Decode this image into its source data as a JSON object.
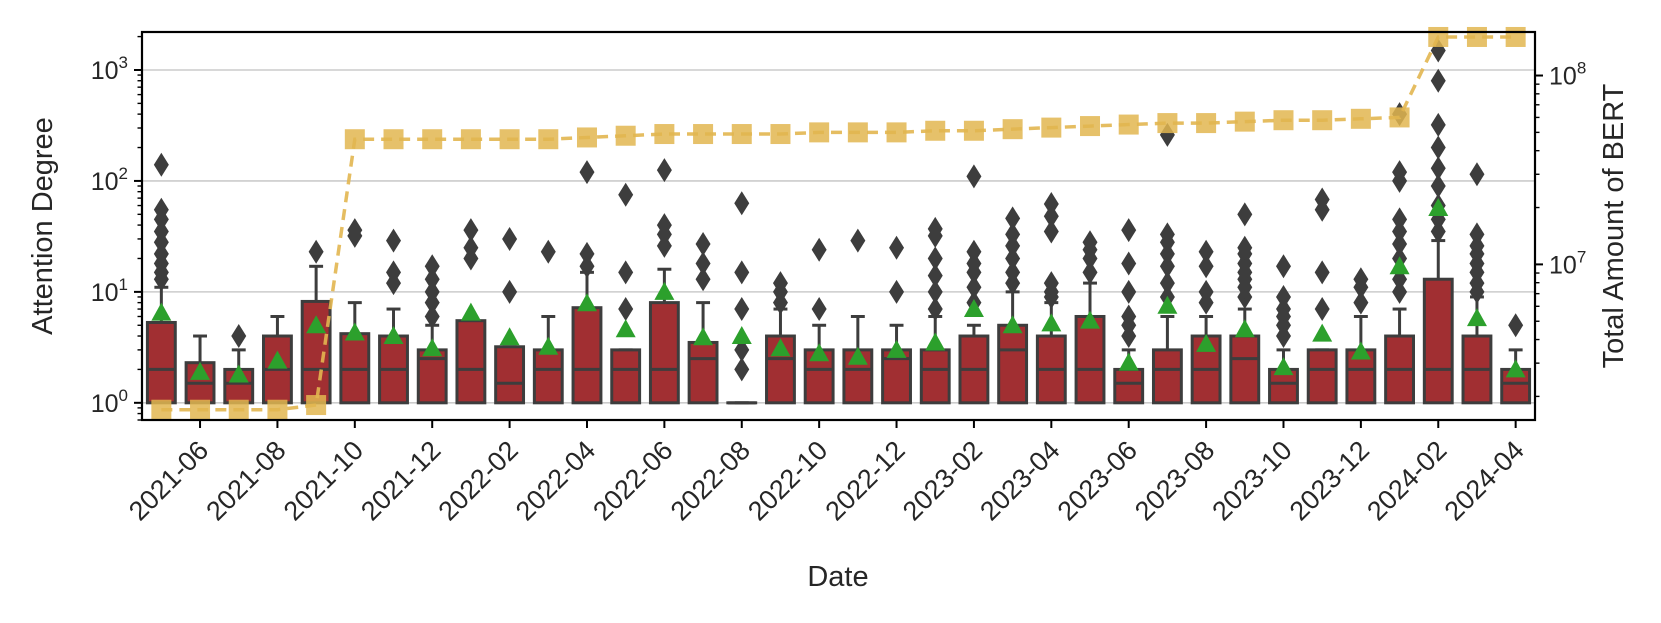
{
  "chart_data": {
    "type": "box",
    "title": "",
    "xlabel": "Date",
    "ylabel_left": "Attention Degree",
    "ylabel_right": "Total Amount of BERT",
    "yscale_left": "log",
    "yscale_right": "log",
    "ylim_left": [
      0.7,
      2200
    ],
    "ylim_right": [
      1500000,
      170000000
    ],
    "months": [
      "2021-05",
      "2021-06",
      "2021-07",
      "2021-08",
      "2021-09",
      "2021-10",
      "2021-11",
      "2021-12",
      "2022-01",
      "2022-02",
      "2022-03",
      "2022-04",
      "2022-05",
      "2022-06",
      "2022-07",
      "2022-08",
      "2022-09",
      "2022-10",
      "2022-11",
      "2022-12",
      "2023-01",
      "2023-02",
      "2023-03",
      "2023-04",
      "2023-05",
      "2023-06",
      "2023-07",
      "2023-08",
      "2023-09",
      "2023-10",
      "2023-11",
      "2023-12",
      "2024-01",
      "2024-02",
      "2024-03",
      "2024-04"
    ],
    "x_tick_labels": [
      "2021-06",
      "2021-08",
      "2021-10",
      "2021-12",
      "2022-02",
      "2022-04",
      "2022-06",
      "2022-08",
      "2022-10",
      "2022-12",
      "2023-02",
      "2023-04",
      "2023-06",
      "2023-08",
      "2023-10",
      "2023-12",
      "2024-02",
      "2024-04"
    ],
    "y_tick_labels_left": [
      {
        "value": 1,
        "label": "10",
        "exp": "0"
      },
      {
        "value": 10,
        "label": "10",
        "exp": "1"
      },
      {
        "value": 100,
        "label": "10",
        "exp": "2"
      },
      {
        "value": 1000,
        "label": "10",
        "exp": "3"
      }
    ],
    "y_tick_labels_right": [
      {
        "value": 10000000,
        "label": "10",
        "exp": "7"
      },
      {
        "value": 100000000,
        "label": "10",
        "exp": "8"
      }
    ],
    "boxes": [
      {
        "q1": 1,
        "median": 2,
        "q3": 5.3,
        "whisker_low": 1,
        "whisker_high": 11,
        "mean": 6.5,
        "outliers": [
          13,
          15,
          18,
          22,
          28,
          35,
          45,
          55,
          140
        ]
      },
      {
        "q1": 1,
        "median": 1.5,
        "q3": 2.3,
        "whisker_low": 1,
        "whisker_high": 4,
        "mean": 1.9,
        "outliers": []
      },
      {
        "q1": 1,
        "median": 1.5,
        "q3": 2,
        "whisker_low": 1,
        "whisker_high": 3,
        "mean": 1.8,
        "outliers": [
          4
        ]
      },
      {
        "q1": 1,
        "median": 2,
        "q3": 4,
        "whisker_low": 1,
        "whisker_high": 6,
        "mean": 2.4,
        "outliers": []
      },
      {
        "q1": 1,
        "median": 2,
        "q3": 8.2,
        "whisker_low": 1,
        "whisker_high": 17,
        "mean": 5,
        "outliers": [
          23
        ]
      },
      {
        "q1": 1,
        "median": 2,
        "q3": 4.2,
        "whisker_low": 1,
        "whisker_high": 8,
        "mean": 4.3,
        "outliers": [
          32,
          36
        ]
      },
      {
        "q1": 1,
        "median": 2,
        "q3": 4,
        "whisker_low": 1,
        "whisker_high": 7,
        "mean": 4,
        "outliers": [
          12,
          15,
          29
        ]
      },
      {
        "q1": 1,
        "median": 2.5,
        "q3": 3,
        "whisker_low": 1,
        "whisker_high": 5,
        "mean": 3.1,
        "outliers": [
          6,
          8,
          10,
          13,
          17
        ]
      },
      {
        "q1": 1,
        "median": 2,
        "q3": 5.5,
        "whisker_low": 1,
        "whisker_high": 5.5,
        "mean": 6.5,
        "outliers": [
          20,
          25,
          36
        ]
      },
      {
        "q1": 1,
        "median": 1.5,
        "q3": 3.2,
        "whisker_low": 1,
        "whisker_high": 3.2,
        "mean": 3.9,
        "outliers": [
          10,
          30
        ]
      },
      {
        "q1": 1,
        "median": 2,
        "q3": 3,
        "whisker_low": 1,
        "whisker_high": 6,
        "mean": 3.2,
        "outliers": [
          23
        ]
      },
      {
        "q1": 1,
        "median": 2,
        "q3": 7.2,
        "whisker_low": 1,
        "whisker_high": 15,
        "mean": 7.9,
        "outliers": [
          17,
          22,
          120
        ]
      },
      {
        "q1": 1,
        "median": 2,
        "q3": 3,
        "whisker_low": 1,
        "whisker_high": 3,
        "mean": 4.6,
        "outliers": [
          7,
          15,
          75
        ]
      },
      {
        "q1": 1,
        "median": 2,
        "q3": 8,
        "whisker_low": 1,
        "whisker_high": 16,
        "mean": 10,
        "outliers": [
          26,
          33,
          40,
          125
        ]
      },
      {
        "q1": 1,
        "median": 2.5,
        "q3": 3.5,
        "whisker_low": 1,
        "whisker_high": 8,
        "mean": 3.9,
        "outliers": [
          13,
          18,
          27
        ]
      },
      {
        "q1": 1,
        "median": 1,
        "q3": 1,
        "whisker_low": 1,
        "whisker_high": 1,
        "mean": 4,
        "outliers": [
          2,
          3,
          7,
          15,
          63
        ]
      },
      {
        "q1": 1,
        "median": 2.5,
        "q3": 4,
        "whisker_low": 1,
        "whisker_high": 7,
        "mean": 3.1,
        "outliers": [
          8,
          10,
          12
        ]
      },
      {
        "q1": 1,
        "median": 2,
        "q3": 3,
        "whisker_low": 1,
        "whisker_high": 5,
        "mean": 2.8,
        "outliers": [
          7,
          24
        ]
      },
      {
        "q1": 1,
        "median": 2,
        "q3": 3,
        "whisker_low": 1,
        "whisker_high": 6,
        "mean": 2.6,
        "outliers": [
          29
        ]
      },
      {
        "q1": 1,
        "median": 2.5,
        "q3": 3,
        "whisker_low": 1,
        "whisker_high": 5,
        "mean": 3,
        "outliers": [
          10,
          25
        ]
      },
      {
        "q1": 1,
        "median": 2,
        "q3": 3,
        "whisker_low": 1,
        "whisker_high": 6,
        "mean": 3.5,
        "outliers": [
          7,
          10,
          14,
          20,
          32,
          37
        ]
      },
      {
        "q1": 1,
        "median": 2,
        "q3": 4,
        "whisker_low": 1,
        "whisker_high": 5,
        "mean": 7,
        "outliers": [
          8,
          11,
          15,
          18,
          23,
          110
        ]
      },
      {
        "q1": 1,
        "median": 3,
        "q3": 5,
        "whisker_low": 1,
        "whisker_high": 10,
        "mean": 5,
        "outliers": [
          12,
          15,
          20,
          26,
          33,
          46
        ]
      },
      {
        "q1": 1,
        "median": 2,
        "q3": 4,
        "whisker_low": 1,
        "whisker_high": 8,
        "mean": 5.2,
        "outliers": [
          9,
          10,
          12,
          35,
          48,
          62
        ]
      },
      {
        "q1": 1,
        "median": 2,
        "q3": 6,
        "whisker_low": 1,
        "whisker_high": 12,
        "mean": 5.5,
        "outliers": [
          15,
          20,
          24,
          28
        ]
      },
      {
        "q1": 1,
        "median": 1.5,
        "q3": 2,
        "whisker_low": 1,
        "whisker_high": 3,
        "mean": 2.3,
        "outliers": [
          4,
          5,
          6,
          10,
          18,
          36
        ]
      },
      {
        "q1": 1,
        "median": 2,
        "q3": 3,
        "whisker_low": 1,
        "whisker_high": 6,
        "mean": 7.5,
        "outliers": [
          9,
          12,
          17,
          22,
          28,
          33,
          260
        ]
      },
      {
        "q1": 1,
        "median": 2,
        "q3": 4,
        "whisker_low": 1,
        "whisker_high": 6,
        "mean": 3.4,
        "outliers": [
          8,
          10,
          17,
          23
        ]
      },
      {
        "q1": 1,
        "median": 2.5,
        "q3": 4,
        "whisker_low": 1,
        "whisker_high": 7,
        "mean": 4.6,
        "outliers": [
          9,
          11,
          13,
          15,
          18,
          22,
          25,
          50
        ]
      },
      {
        "q1": 1,
        "median": 1.5,
        "q3": 2,
        "whisker_low": 1,
        "whisker_high": 3,
        "mean": 2.1,
        "outliers": [
          4,
          5,
          6,
          7,
          9,
          17
        ]
      },
      {
        "q1": 1,
        "median": 2,
        "q3": 3,
        "whisker_low": 1,
        "whisker_high": 3,
        "mean": 4.2,
        "outliers": [
          7,
          15,
          55,
          68
        ]
      },
      {
        "q1": 1,
        "median": 2,
        "q3": 3,
        "whisker_low": 1,
        "whisker_high": 6,
        "mean": 2.9,
        "outliers": [
          8,
          11,
          13
        ]
      },
      {
        "q1": 1,
        "median": 2,
        "q3": 4,
        "whisker_low": 1,
        "whisker_high": 7,
        "mean": 17,
        "outliers": [
          10,
          13,
          20,
          27,
          35,
          45,
          100,
          120,
          400
        ]
      },
      {
        "q1": 1,
        "median": 2,
        "q3": 13,
        "whisker_low": 1,
        "whisker_high": 29,
        "mean": 57,
        "outliers": [
          35,
          45,
          60,
          90,
          130,
          200,
          320,
          800,
          1500
        ]
      },
      {
        "q1": 1,
        "median": 2,
        "q3": 4,
        "whisker_low": 1,
        "whisker_high": 9,
        "mean": 5.8,
        "outliers": [
          10,
          12,
          15,
          18,
          22,
          26,
          33,
          115
        ]
      },
      {
        "q1": 1,
        "median": 1.5,
        "q3": 2,
        "whisker_low": 1,
        "whisker_high": 3,
        "mean": 2,
        "outliers": [
          5
        ]
      }
    ],
    "total_series": {
      "name": "Total Amount of BERT",
      "values": [
        1700000,
        1700000,
        1700000,
        1700000,
        1800000,
        46000000,
        46000000,
        46000000,
        46000000,
        46000000,
        46000000,
        47000000,
        48000000,
        49000000,
        49000000,
        49000000,
        49000000,
        50000000,
        50000000,
        50000000,
        51000000,
        51000000,
        52000000,
        53000000,
        54000000,
        55000000,
        56000000,
        56000000,
        57000000,
        58000000,
        58000000,
        59000000,
        60000000,
        160000000,
        160000000,
        160000000
      ]
    },
    "colors": {
      "box_fill": "#a12f32",
      "box_edge": "#3d3d3d",
      "mean_marker": "#2ca02c",
      "outlier": "#3d3d3d",
      "line": "#e2b650",
      "grid": "#cccccc"
    }
  }
}
